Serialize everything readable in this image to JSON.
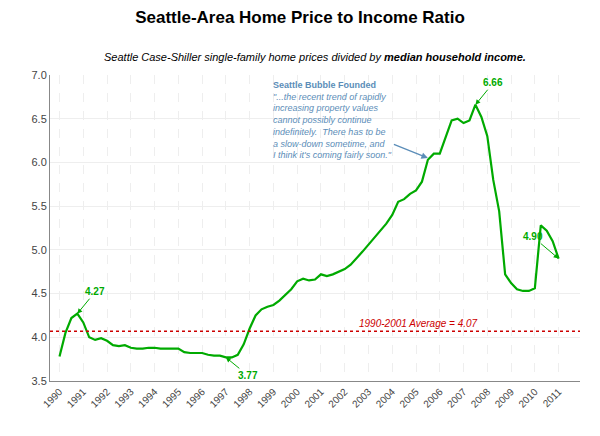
{
  "chart_data": {
    "type": "line",
    "title": "Seattle-Area Home Price to Income Ratio",
    "subtitle": [
      "Seattle Case-Shiller single-family home prices divided by ",
      "median household income."
    ],
    "x": [
      1990.0,
      1990.25,
      1990.5,
      1990.75,
      1991.0,
      1991.25,
      1991.5,
      1991.75,
      1992.0,
      1992.25,
      1992.5,
      1992.75,
      1993.0,
      1993.25,
      1993.5,
      1993.75,
      1994.0,
      1994.25,
      1994.5,
      1994.75,
      1995.0,
      1995.25,
      1995.5,
      1995.75,
      1996.0,
      1996.25,
      1996.5,
      1996.75,
      1997.0,
      1997.25,
      1997.5,
      1997.75,
      1998.0,
      1998.25,
      1998.5,
      1998.75,
      1999.0,
      1999.25,
      1999.5,
      1999.75,
      2000.0,
      2000.25,
      2000.5,
      2000.75,
      2001.0,
      2001.25,
      2001.5,
      2001.75,
      2002.0,
      2002.25,
      2002.5,
      2002.75,
      2003.0,
      2003.25,
      2003.5,
      2003.75,
      2004.0,
      2004.25,
      2004.5,
      2004.75,
      2005.0,
      2005.25,
      2005.5,
      2005.75,
      2006.0,
      2006.25,
      2006.5,
      2006.75,
      2007.0,
      2007.25,
      2007.5,
      2007.75,
      2008.0,
      2008.25,
      2008.5,
      2008.75,
      2009.0,
      2009.25,
      2009.5,
      2009.75,
      2010.0,
      2010.25,
      2010.5,
      2010.75,
      2011.0
    ],
    "values": [
      3.78,
      4.05,
      4.22,
      4.27,
      4.17,
      4.0,
      3.97,
      3.99,
      3.96,
      3.91,
      3.9,
      3.91,
      3.88,
      3.87,
      3.87,
      3.88,
      3.88,
      3.87,
      3.87,
      3.87,
      3.87,
      3.83,
      3.82,
      3.82,
      3.82,
      3.8,
      3.79,
      3.79,
      3.77,
      3.77,
      3.8,
      3.92,
      4.1,
      4.25,
      4.32,
      4.35,
      4.37,
      4.42,
      4.48,
      4.55,
      4.64,
      4.67,
      4.65,
      4.66,
      4.72,
      4.7,
      4.72,
      4.75,
      4.78,
      4.83,
      4.9,
      4.98,
      5.06,
      5.14,
      5.22,
      5.3,
      5.4,
      5.55,
      5.58,
      5.64,
      5.68,
      5.78,
      6.03,
      6.1,
      6.1,
      6.3,
      6.48,
      6.5,
      6.45,
      6.48,
      6.66,
      6.52,
      6.3,
      5.8,
      5.44,
      4.72,
      4.62,
      4.55,
      4.53,
      4.53,
      4.56,
      5.28,
      5.22,
      5.1,
      4.9
    ],
    "color": "#00aa00",
    "xlim": [
      1989.6,
      2011.9
    ],
    "ylim": [
      3.5,
      7.0
    ],
    "xticks": [
      1990,
      1991,
      1992,
      1993,
      1994,
      1995,
      1996,
      1997,
      1998,
      1999,
      2000,
      2001,
      2002,
      2003,
      2004,
      2005,
      2006,
      2007,
      2008,
      2009,
      2010,
      2011
    ],
    "yticks": [
      3.5,
      {
        "value": 4.0,
        "label": "4.0"
      },
      4.5,
      {
        "value": 5.0,
        "label": "5.0"
      },
      5.5,
      {
        "value": 6.0,
        "label": "6.0"
      },
      6.5,
      {
        "value": 7.0,
        "label": "7.0"
      }
    ],
    "grid": true,
    "reference_lines": [
      {
        "y": 4.07,
        "label": "1990-2001 Average = 4.07",
        "color": "#cc0000",
        "line_style": "dotted"
      }
    ],
    "annotations": [
      {
        "text": "4.27",
        "x": 1990.75,
        "y": 4.27
      },
      {
        "text": "3.77",
        "x": 1997.0,
        "y": 3.77
      },
      {
        "text": "6.66",
        "x": 2007.5,
        "y": 6.66
      },
      {
        "text": "4.90",
        "x": 2011.0,
        "y": 4.9
      },
      {
        "text": "Seattle Bubble Founded",
        "detail": "\"...the recent trend of rapidly\nincreasing property values\ncannot possibly continue\nindefinitely.  There has to be\na slow-down sometime, and\nI think it's coming fairly soon.\"",
        "x": 2005.5,
        "y": 6.05,
        "color": "#5b8db8"
      }
    ]
  }
}
